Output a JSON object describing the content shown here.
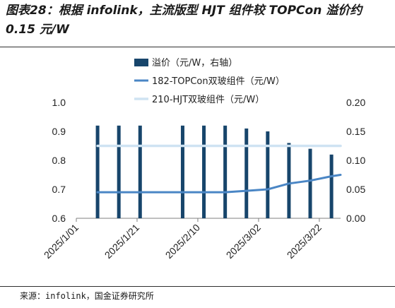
{
  "header": {
    "title": "图表28：根据 infolink，主流版型 HJT 组件较 TOPCon 溢价约 0.15 元/W"
  },
  "footer": {
    "source": "来源：infolink，国金证券研究所"
  },
  "colors": {
    "bar": "#17456b",
    "topcon": "#4a86c5",
    "hjt": "#cfe3f2"
  },
  "chart_data": {
    "type": "bar",
    "legend": [
      "溢价（元/W，右轴）",
      "182-TOPCon双玻组件（元/W）",
      "210-HJT双玻组件（元/W）"
    ],
    "x": [
      "2025-01-08",
      "2025-01-15",
      "2025-01-22",
      "2025-02-05",
      "2025-02-12",
      "2025-02-19",
      "2025-02-26",
      "2025-03-05",
      "2025-03-12",
      "2025-03-19",
      "2025-03-26"
    ],
    "x_ticks": [
      "2025/1/01",
      "2025/1/21",
      "2025/2/10",
      "2025/3/02",
      "2025/3/22"
    ],
    "x_range": [
      "2025-01-01",
      "2025-03-29"
    ],
    "series": [
      {
        "name": "溢价（元/W，右轴）",
        "type": "bar",
        "axis": "right",
        "values": [
          0.16,
          0.16,
          0.16,
          0.16,
          0.16,
          0.16,
          0.155,
          0.15,
          0.13,
          0.12,
          0.11
        ]
      },
      {
        "name": "182-TOPCon双玻组件（元/W）",
        "type": "line",
        "axis": "left",
        "points": [
          [
            "2025-01-08",
            0.69
          ],
          [
            "2025-01-15",
            0.69
          ],
          [
            "2025-01-22",
            0.69
          ],
          [
            "2025-02-05",
            0.69
          ],
          [
            "2025-02-12",
            0.69
          ],
          [
            "2025-02-19",
            0.69
          ],
          [
            "2025-02-26",
            0.695
          ],
          [
            "2025-03-05",
            0.7
          ],
          [
            "2025-03-12",
            0.72
          ],
          [
            "2025-03-19",
            0.73
          ],
          [
            "2025-03-26",
            0.745
          ],
          [
            "2025-03-29",
            0.75
          ]
        ]
      },
      {
        "name": "210-HJT双玻组件（元/W）",
        "type": "line",
        "axis": "left",
        "points": [
          [
            "2025-01-08",
            0.85
          ],
          [
            "2025-03-29",
            0.85
          ]
        ]
      }
    ],
    "ylim_left": [
      0.6,
      1.0
    ],
    "yticks_left": [
      "0.6",
      "0.7",
      "0.8",
      "0.9",
      "1.0"
    ],
    "ylim_right": [
      0.0,
      0.2
    ],
    "yticks_right": [
      "0.00",
      "0.05",
      "0.10",
      "0.15",
      "0.20"
    ],
    "grid": false,
    "legend_position": "top-left"
  }
}
